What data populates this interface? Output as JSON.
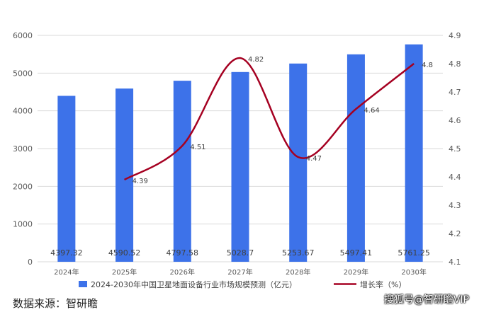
{
  "chart_data": {
    "type": "bar+line",
    "categories": [
      "2024年",
      "2025年",
      "2026年",
      "2027年",
      "2028年",
      "2029年",
      "2030年"
    ],
    "series": [
      {
        "name": "2024-2030年中国卫星地面设备行业市场规模预测（亿元）",
        "type": "bar",
        "axis": "left",
        "color": "#3D72E9",
        "values": [
          4397.32,
          4590.52,
          4797.58,
          5028.7,
          5253.67,
          5497.41,
          5761.25
        ],
        "labels": [
          "4397.32",
          "4590.52",
          "4797.58",
          "5028.7",
          "5253.67",
          "5497.41",
          "5761.25"
        ]
      },
      {
        "name": "增长率（%）",
        "type": "line",
        "axis": "right",
        "color": "#A50021",
        "values": [
          null,
          4.39,
          4.51,
          4.82,
          4.47,
          4.64,
          4.8
        ],
        "labels": [
          "",
          "4.39",
          "4.51",
          "4.82",
          "4.47",
          "4.64",
          "4.8"
        ]
      }
    ],
    "y_left": {
      "min": 0,
      "max": 6000,
      "ticks": [
        "0",
        "1000",
        "2000",
        "3000",
        "4000",
        "5000",
        "6000"
      ]
    },
    "y_right": {
      "min": 4.1,
      "max": 4.9,
      "ticks": [
        "4.1",
        "4.2",
        "4.3",
        "4.4",
        "4.5",
        "4.6",
        "4.7",
        "4.8",
        "4.9"
      ]
    },
    "grid": true,
    "legend_position": "bottom"
  },
  "source_text": "数据来源：智研瞻",
  "watermark_text": "搜狐号@智研瞻VIP"
}
